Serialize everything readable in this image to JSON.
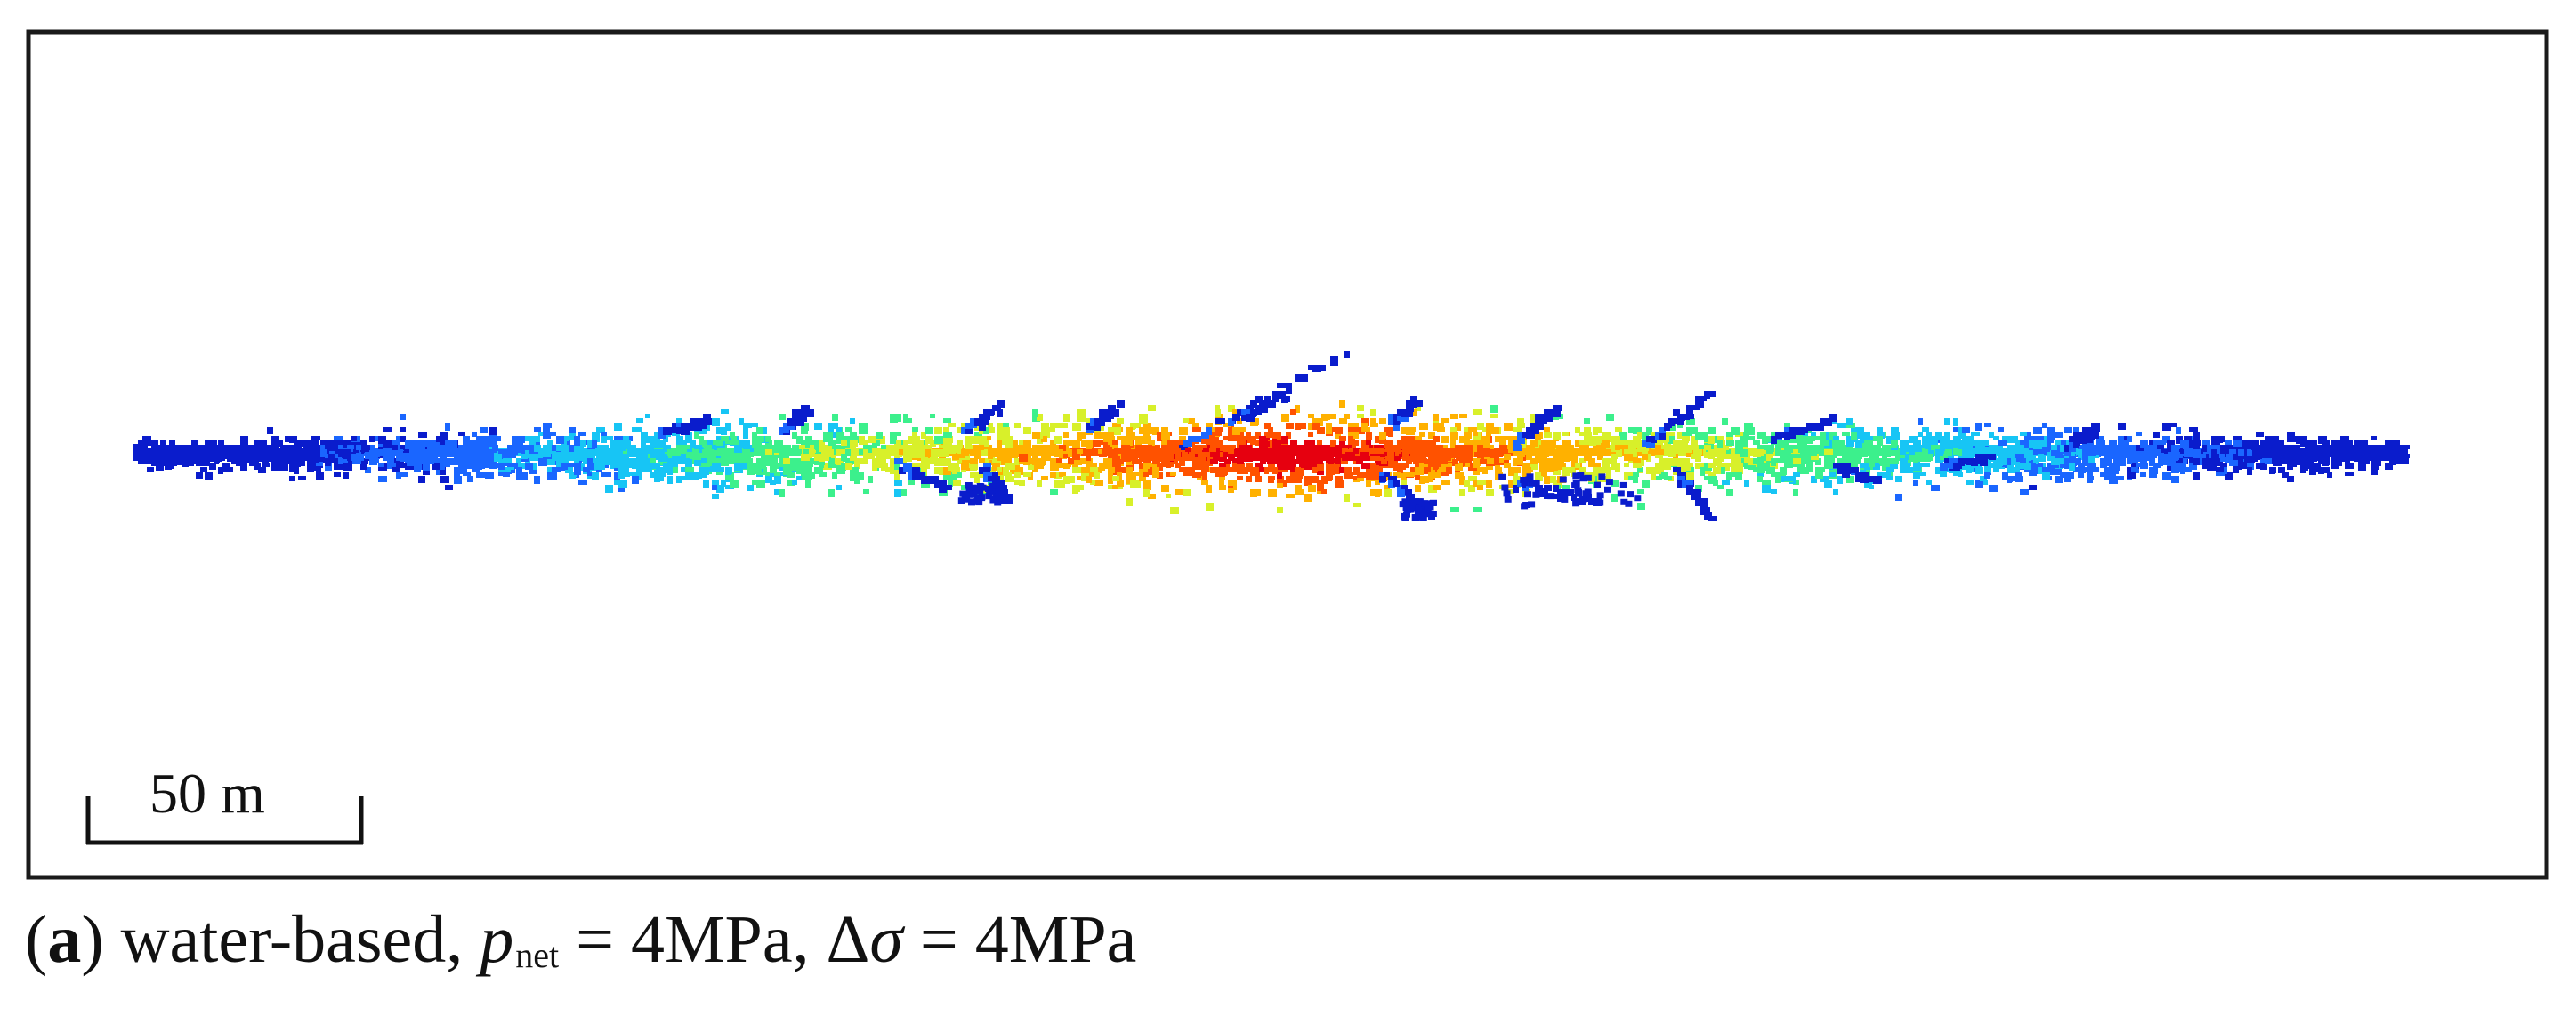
{
  "scale_bar": {
    "label": "50 m"
  },
  "caption": {
    "pane_letter": "a",
    "open_paren": "(",
    "close_paren": ")",
    "fluid": " water-based, ",
    "pnet_symbol": "p",
    "pnet_subscript": "net",
    "pnet_value": " = 4MPa, ",
    "delta_symbol": "Δ",
    "sigma_symbol": "σ",
    "delta_sigma_value": " = 4MPa"
  },
  "colormap": [
    "#0a1ccc",
    "#1a66ff",
    "#17c5f5",
    "#3cf08c",
    "#d8f02a",
    "#ffb100",
    "#ff5200",
    "#e6000f"
  ]
}
